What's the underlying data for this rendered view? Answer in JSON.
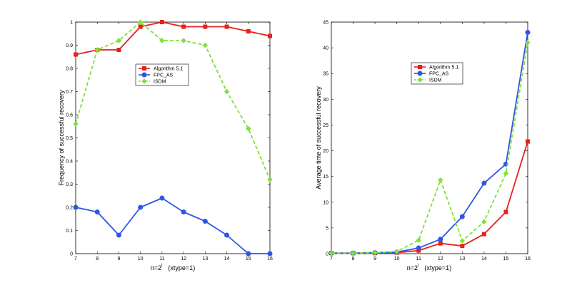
{
  "chart_data": [
    {
      "type": "line",
      "xlabel_base": "n=2",
      "xlabel_exp": "l",
      "xlabel_suffix": "(xtype=1)",
      "ylabel": "Frequency of successful recovery",
      "x": [
        7,
        8,
        9,
        10,
        11,
        12,
        13,
        14,
        15,
        16
      ],
      "xlim": [
        7,
        16
      ],
      "ylim": [
        0,
        1
      ],
      "xticks": [
        "7",
        "8",
        "9",
        "10",
        "11",
        "12",
        "13",
        "14",
        "15",
        "16"
      ],
      "yticks": [
        "0",
        "0.1",
        "0.2",
        "0.3",
        "0.4",
        "0.5",
        "0.6",
        "0.7",
        "0.8",
        "0.9",
        "1"
      ],
      "ytick_values": [
        0,
        0.1,
        0.2,
        0.3,
        0.4,
        0.5,
        0.6,
        0.7,
        0.8,
        0.9,
        1
      ],
      "legend_position": "center",
      "series": [
        {
          "name": "Algorithm 5.1",
          "color": "#e8201a",
          "style": "solid",
          "marker": "square",
          "values": [
            0.86,
            0.88,
            0.88,
            0.98,
            1.0,
            0.98,
            0.98,
            0.98,
            0.96,
            0.94
          ]
        },
        {
          "name": "FPC_AS",
          "color": "#2f56e0",
          "style": "solid",
          "marker": "circle",
          "values": [
            0.2,
            0.18,
            0.08,
            0.2,
            0.24,
            0.18,
            0.14,
            0.08,
            0.0,
            0.0
          ]
        },
        {
          "name": "ISDM",
          "color": "#7fe03a",
          "style": "dashed",
          "marker": "diamond",
          "values": [
            0.56,
            0.88,
            0.92,
            1.0,
            0.92,
            0.92,
            0.9,
            0.7,
            0.54,
            0.32
          ]
        }
      ]
    },
    {
      "type": "line",
      "xlabel_base": "n=2",
      "xlabel_exp": "l",
      "xlabel_suffix": "(xtype=1)",
      "ylabel": "Average time of successful recovery",
      "x": [
        7,
        8,
        9,
        10,
        11,
        12,
        13,
        14,
        15,
        16
      ],
      "xlim": [
        7,
        16
      ],
      "ylim": [
        0,
        45
      ],
      "xticks": [
        "7",
        "8",
        "9",
        "10",
        "11",
        "12",
        "13",
        "14",
        "15",
        "16"
      ],
      "yticks": [
        "0",
        "5",
        "10",
        "15",
        "20",
        "25",
        "30",
        "35",
        "40",
        "45"
      ],
      "ytick_values": [
        0,
        5,
        10,
        15,
        20,
        25,
        30,
        35,
        40,
        45
      ],
      "legend_position": "upper-center",
      "series": [
        {
          "name": "Algorithm 5.1",
          "color": "#e8201a",
          "style": "solid",
          "marker": "square",
          "values": [
            0.1,
            0.1,
            0.1,
            0.2,
            0.6,
            2.0,
            1.5,
            3.8,
            8.1,
            21.8
          ]
        },
        {
          "name": "FPC_AS",
          "color": "#2f56e0",
          "style": "solid",
          "marker": "circle",
          "values": [
            0.1,
            0.1,
            0.2,
            0.3,
            1.1,
            2.8,
            7.2,
            13.7,
            17.4,
            43.0
          ]
        },
        {
          "name": "ISDM",
          "color": "#7fe03a",
          "style": "dashed",
          "marker": "diamond",
          "values": [
            0.1,
            0.1,
            0.2,
            0.4,
            2.6,
            14.3,
            2.5,
            6.2,
            15.6,
            41.0
          ]
        }
      ]
    }
  ]
}
